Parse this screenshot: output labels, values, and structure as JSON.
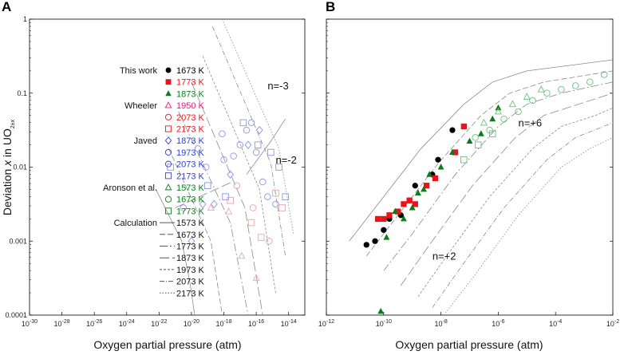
{
  "chart_data": [
    {
      "panel": "A",
      "type": "scatter",
      "title": "",
      "xlabel": "Oxygen partial pressure (atm)",
      "ylabel_parts": [
        "Deviation ",
        "x",
        " in UO",
        "2±x"
      ],
      "xscale": "log",
      "yscale": "log",
      "xlim_exp": [
        -30,
        -13
      ],
      "ylim_exp": [
        -4,
        0
      ],
      "xtick_exps": [
        "-30",
        "-28",
        "-26",
        "-24",
        "-22",
        "-20",
        "-18",
        "-16",
        "-14"
      ],
      "ytick_labels": [
        "0.0001",
        "0.001",
        "0.01",
        "0.1",
        "1"
      ],
      "annotations": [
        {
          "text": "n=-3",
          "at": [
            -15.3,
            -0.95
          ]
        },
        {
          "text": "n=-2",
          "at": [
            -14.8,
            -1.95
          ]
        }
      ],
      "legend_groups": [
        {
          "name": "This work",
          "entries": [
            {
              "temp": "1673 K",
              "marker": "circle",
              "filled": true,
              "color": "#000000"
            },
            {
              "temp": "1773 K",
              "marker": "square",
              "filled": true,
              "color": "#e8141b"
            },
            {
              "temp": "1873 K",
              "marker": "triangle",
              "filled": true,
              "color": "#0a7d1a"
            }
          ]
        },
        {
          "name": "Wheeler",
          "entries": [
            {
              "temp": "1950 K",
              "marker": "triangle",
              "filled": false,
              "color": "#e0207a"
            },
            {
              "temp": "2073 K",
              "marker": "circle",
              "filled": false,
              "color": "#e8141b"
            },
            {
              "temp": "2173 K",
              "marker": "square",
              "filled": false,
              "color": "#e8141b"
            }
          ]
        },
        {
          "name": "Javed",
          "entries": [
            {
              "temp": "1873 K",
              "marker": "diamond",
              "filled": false,
              "color": "#2f3fd0"
            },
            {
              "temp": "1973 K",
              "marker": "circle",
              "filled": false,
              "color": "#2f3fd0"
            },
            {
              "temp": "2073 K",
              "marker": "circle",
              "filled": false,
              "color": "#2f3fd0"
            },
            {
              "temp": "2173 K",
              "marker": "square",
              "filled": false,
              "color": "#2f3fd0"
            }
          ]
        },
        {
          "name": "Aronson et al.",
          "entries": [
            {
              "temp": "1573 K",
              "marker": "triangle",
              "filled": false,
              "color": "#0a7d1a"
            },
            {
              "temp": "1673 K",
              "marker": "circle",
              "filled": false,
              "color": "#0a7d1a"
            },
            {
              "temp": "1773 K",
              "marker": "square",
              "filled": false,
              "color": "#0a7d1a"
            }
          ]
        },
        {
          "name": "Calculation",
          "entries": [
            {
              "temp": "1573 K",
              "marker": "line",
              "dash": "",
              "color": "#555555"
            },
            {
              "temp": "1673 K",
              "marker": "line",
              "dash": "7 3",
              "color": "#555555"
            },
            {
              "temp": "1773 K",
              "marker": "line",
              "dash": "10 3 2 3",
              "color": "#555555"
            },
            {
              "temp": "1873 K",
              "marker": "line",
              "dash": "12 4",
              "color": "#555555"
            },
            {
              "temp": "1973 K",
              "marker": "line",
              "dash": "3 2",
              "color": "#555555"
            },
            {
              "temp": "2073 K",
              "marker": "line",
              "dash": "6 2 1 2",
              "color": "#555555"
            },
            {
              "temp": "2173 K",
              "marker": "line",
              "dash": "1.5 2",
              "color": "#555555"
            }
          ]
        }
      ],
      "series": [
        {
          "name": "Javed 1873 K",
          "marker": "diamond",
          "color": "#8d94e6",
          "x": [
            -20,
            -19.3,
            -18.6,
            -17.6,
            -16.5,
            -15.8
          ],
          "y": [
            -3,
            -2.5,
            -2.5,
            -2.1,
            -1.7,
            -1.5
          ]
        },
        {
          "name": "Javed 1973 K",
          "marker": "circle",
          "color": "#8d94e6",
          "x": [
            -20.5,
            -19.1,
            -18,
            -17,
            -16.3,
            -15.3,
            -14.8
          ],
          "y": [
            -2.55,
            -2.0,
            -1.9,
            -1.7,
            -1.4,
            -2.4,
            -2.5
          ]
        },
        {
          "name": "Javed 2073 K",
          "marker": "circle",
          "color": "#8d94e6",
          "x": [
            -19.6,
            -18.1,
            -17.4,
            -16.6,
            -16.0,
            -15.6
          ],
          "y": [
            -1.75,
            -1.55,
            -1.85,
            -1.5,
            -1.8,
            -2.2
          ]
        },
        {
          "name": "Javed 2173 K",
          "marker": "square",
          "color": "#8d94e6",
          "x": [
            -21.3,
            -19.0,
            -17.9,
            -16.8,
            -15.9,
            -15.1,
            -14.6,
            -14.2
          ],
          "y": [
            -2.0,
            -2.25,
            -2.4,
            -1.4,
            -1.7,
            -1.8,
            -2.0,
            -2.4
          ]
        },
        {
          "name": "Wheeler 1950 K",
          "marker": "triangle",
          "color": "#f0a0c4",
          "x": [
            -18.8,
            -17.7,
            -16.9,
            -16.0
          ],
          "y": [
            -2.55,
            -2.6,
            -3.2,
            -3.5
          ]
        },
        {
          "name": "Wheeler 2073 K",
          "marker": "circle",
          "color": "#f0a0a0",
          "x": [
            -17.2,
            -16.2,
            -15.2
          ],
          "y": [
            -2.25,
            -2.55,
            -3.0
          ]
        },
        {
          "name": "Wheeler 2173 K",
          "marker": "square",
          "color": "#f0a0a0",
          "x": [
            -17.6,
            -16.3,
            -15.7,
            -14.8,
            -14.4
          ],
          "y": [
            -2.45,
            -2.75,
            -2.95,
            -2.35,
            -2.55
          ]
        }
      ],
      "calc_curves": [
        {
          "temp": "1573 K",
          "dash": "",
          "pts": [
            [
              -22.2,
              -2.3
            ],
            [
              -20.6,
              -3.0
            ],
            [
              -20.1,
              -3.55
            ],
            [
              -19.8,
              -4.0
            ]
          ]
        },
        {
          "temp": "1673 K",
          "dash": "7 3",
          "pts": [
            [
              -21.4,
              -1.75
            ],
            [
              -18.8,
              -3.0
            ],
            [
              -18.1,
              -4.0
            ]
          ]
        },
        {
          "temp": "1773 K",
          "dash": "10 3 2 3",
          "pts": [
            [
              -20.8,
              -1.25
            ],
            [
              -17.6,
              -2.75
            ],
            [
              -16.5,
              -4.0
            ]
          ]
        },
        {
          "temp": "1873 K",
          "dash": "12 4",
          "pts": [
            [
              -20.0,
              -0.85
            ],
            [
              -16.7,
              -2.55
            ],
            [
              -15.6,
              -4.0
            ]
          ]
        },
        {
          "temp": "1973 K",
          "dash": "3 2",
          "pts": [
            [
              -19.3,
              -0.5
            ],
            [
              -15.8,
              -2.3
            ],
            [
              -14.8,
              -3.7
            ]
          ]
        },
        {
          "temp": "2073 K",
          "dash": "6 2 1 2",
          "pts": [
            [
              -18.7,
              -0.1
            ],
            [
              -15.1,
              -1.95
            ],
            [
              -14.2,
              -3.2
            ]
          ]
        },
        {
          "temp": "2173 K",
          "dash": "1.5 2",
          "pts": [
            [
              -18.1,
              0.0
            ],
            [
              -14.6,
              -1.75
            ],
            [
              -13.7,
              -2.9
            ]
          ]
        },
        {
          "temp": "1573 K",
          "dash": "",
          "pts": [
            [
              -16.6,
              -2.1
            ],
            [
              -15.1,
              -1.65
            ],
            [
              -14.2,
              -1.35
            ]
          ]
        },
        {
          "temp": "1673 K",
          "dash": "12 4",
          "pts": [
            [
              -21.0,
              -2.55
            ],
            [
              -17.5,
              -2.2
            ]
          ]
        }
      ]
    },
    {
      "panel": "B",
      "type": "scatter",
      "title": "",
      "xlabel": "Oxygen partial pressure (atm)",
      "xscale": "log",
      "yscale": "log",
      "xlim_exp": [
        -12,
        -2
      ],
      "ylim_exp": [
        -4,
        0
      ],
      "xtick_exps": [
        "-12",
        "-10",
        "-8",
        "-6",
        "-4",
        "-2"
      ],
      "annotations": [
        {
          "text": "n=+6",
          "at": [
            -5.3,
            -1.45
          ]
        },
        {
          "text": "n=+2",
          "at": [
            -8.3,
            -3.25
          ]
        }
      ],
      "series": [
        {
          "name": "This work 1673 K",
          "marker": "circle",
          "filled": true,
          "color": "#000000",
          "x": [
            -10.6,
            -10.3,
            -10.0,
            -9.8,
            -9.4,
            -9.1,
            -8.9,
            -8.3,
            -8.1,
            -7.6
          ],
          "y": [
            -3.05,
            -3.0,
            -2.85,
            -2.7,
            -2.65,
            -2.45,
            -2.25,
            -2.1,
            -1.9,
            -1.5
          ]
        },
        {
          "name": "This work 1773 K",
          "marker": "square",
          "filled": true,
          "color": "#e8141b",
          "x": [
            -10.2,
            -10.0,
            -9.8,
            -9.5,
            -9.3,
            -9.1,
            -8.9,
            -8.5,
            -8.2,
            -7.5,
            -7.2
          ],
          "y": [
            -2.7,
            -2.7,
            -2.65,
            -2.6,
            -2.5,
            -2.45,
            -2.5,
            -2.25,
            -2.15,
            -1.8,
            -1.45
          ]
        },
        {
          "name": "This work 1873 K",
          "marker": "triangle",
          "filled": true,
          "color": "#0a7d1a",
          "x": [
            -10.1,
            -9.9,
            -9.6,
            -9.3,
            -9.0,
            -8.8,
            -8.6,
            -8.4,
            -8.0,
            -7.6,
            -7.0,
            -6.6,
            -6.2,
            -6.0
          ],
          "y": [
            -3.95,
            -2.95,
            -2.6,
            -2.7,
            -2.55,
            -2.35,
            -2.3,
            -2.1,
            -2.0,
            -1.8,
            -1.65,
            -1.55,
            -1.35,
            -1.2
          ]
        },
        {
          "name": "Aronson 1573 K",
          "marker": "triangle",
          "filled": false,
          "color": "#66c27a",
          "x": [
            -6.5,
            -6.0,
            -5.5,
            -5.0,
            -4.5
          ],
          "y": [
            -1.4,
            -1.25,
            -1.15,
            -1.05,
            -0.95
          ]
        },
        {
          "name": "Aronson 1673 K",
          "marker": "circle",
          "filled": false,
          "color": "#66c27a",
          "x": [
            -6.8,
            -6.3,
            -5.8,
            -5.3,
            -4.8,
            -4.3,
            -3.8,
            -3.3,
            -2.8,
            -2.3
          ],
          "y": [
            -1.6,
            -1.5,
            -1.35,
            -1.25,
            -1.1,
            -1.0,
            -0.95,
            -0.9,
            -0.85,
            -0.75
          ]
        },
        {
          "name": "Aronson 1773 K",
          "marker": "square",
          "filled": false,
          "color": "#66c27a",
          "x": [
            -7.2,
            -6.7,
            -6.2
          ],
          "y": [
            -1.9,
            -1.7,
            -1.55
          ]
        }
      ],
      "calc_curves": [
        {
          "temp": "1573 K",
          "dash": "",
          "pts": [
            [
              -11.2,
              -3.0
            ],
            [
              -10.2,
              -2.5
            ],
            [
              -8.7,
              -1.75
            ],
            [
              -7.2,
              -1.15
            ],
            [
              -6.2,
              -0.85
            ],
            [
              -5.0,
              -0.7
            ],
            [
              -2.0,
              -0.55
            ]
          ]
        },
        {
          "temp": "1673 K",
          "dash": "7 3",
          "pts": [
            [
              -10.6,
              -3.2
            ],
            [
              -9.6,
              -2.7
            ],
            [
              -8.1,
              -1.95
            ],
            [
              -6.6,
              -1.3
            ],
            [
              -5.6,
              -1.0
            ],
            [
              -4.4,
              -0.85
            ],
            [
              -2.0,
              -0.7
            ]
          ]
        },
        {
          "temp": "1773 K",
          "dash": "10 3 2 3",
          "pts": [
            [
              -10.0,
              -3.4
            ],
            [
              -9.0,
              -2.9
            ],
            [
              -7.5,
              -2.1
            ],
            [
              -6.0,
              -1.45
            ],
            [
              -5.0,
              -1.15
            ],
            [
              -3.8,
              -1.0
            ],
            [
              -2.0,
              -0.85
            ]
          ]
        },
        {
          "temp": "1873 K",
          "dash": "12 4",
          "pts": [
            [
              -9.4,
              -3.6
            ],
            [
              -8.4,
              -3.05
            ],
            [
              -6.9,
              -2.25
            ],
            [
              -5.4,
              -1.6
            ],
            [
              -4.4,
              -1.3
            ],
            [
              -3.2,
              -1.15
            ],
            [
              -2.0,
              -1.0
            ]
          ]
        },
        {
          "temp": "1973 K",
          "dash": "3 2",
          "pts": [
            [
              -8.8,
              -3.75
            ],
            [
              -7.8,
              -3.2
            ],
            [
              -6.3,
              -2.4
            ],
            [
              -4.8,
              -1.75
            ],
            [
              -3.8,
              -1.45
            ],
            [
              -2.6,
              -1.3
            ],
            [
              -2.0,
              -1.2
            ]
          ]
        },
        {
          "temp": "2073 K",
          "dash": "6 2 1 2",
          "pts": [
            [
              -8.3,
              -3.9
            ],
            [
              -7.3,
              -3.35
            ],
            [
              -5.8,
              -2.55
            ],
            [
              -4.3,
              -1.9
            ],
            [
              -3.3,
              -1.6
            ],
            [
              -2.0,
              -1.4
            ]
          ]
        },
        {
          "temp": "2173 K",
          "dash": "1.5 2",
          "pts": [
            [
              -7.9,
              -4.0
            ],
            [
              -6.8,
              -3.45
            ],
            [
              -5.3,
              -2.65
            ],
            [
              -3.8,
              -2.0
            ],
            [
              -2.8,
              -1.75
            ],
            [
              -2.0,
              -1.6
            ]
          ]
        }
      ]
    }
  ]
}
